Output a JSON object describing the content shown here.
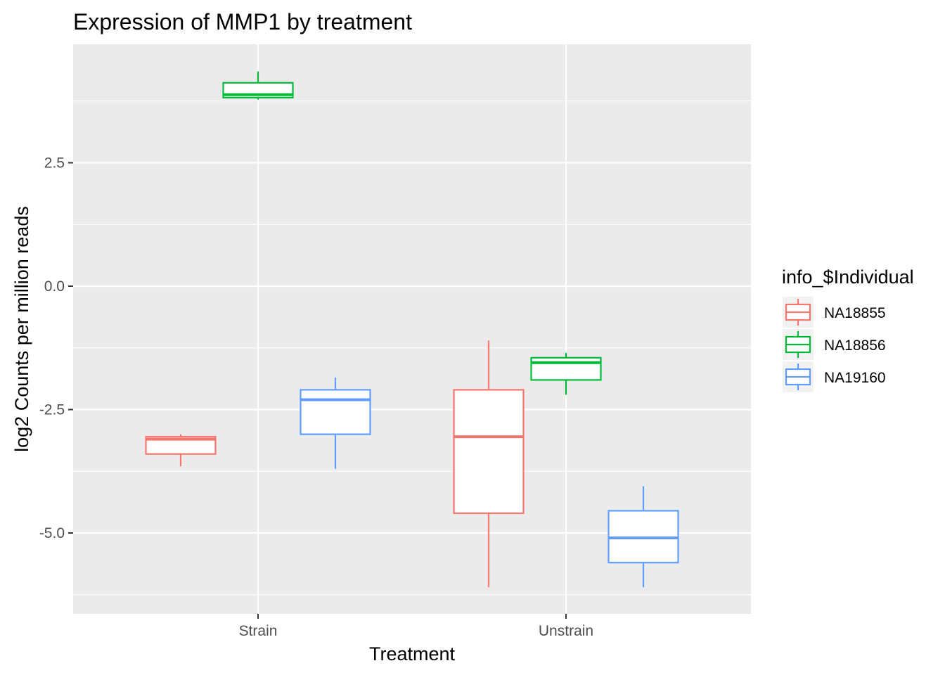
{
  "chart_data": {
    "type": "boxplot",
    "title": "Expression of MMP1 by treatment",
    "xlabel": "Treatment",
    "ylabel": "log2 Counts per million reads",
    "categories": [
      "Strain",
      "Unstrain"
    ],
    "y_ticks": [
      2.5,
      0.0,
      -2.5,
      -5.0
    ],
    "y_tick_labels": [
      "2.5",
      "0.0",
      "-2.5",
      "-5.0"
    ],
    "ylim": [
      -6.6,
      4.9
    ],
    "grid": true,
    "legend": {
      "title": "info_$Individual",
      "position": "right"
    },
    "series": [
      {
        "name": "NA18855",
        "color": "#F8766D",
        "boxes": [
          {
            "category": "Strain",
            "min": -3.65,
            "q1": -3.4,
            "median": -3.1,
            "q3": -3.05,
            "max": -3.0
          },
          {
            "category": "Unstrain",
            "min": -6.1,
            "q1": -4.6,
            "median": -3.05,
            "q3": -2.1,
            "max": -1.1
          }
        ]
      },
      {
        "name": "NA18856",
        "color": "#00BA38",
        "boxes": [
          {
            "category": "Strain",
            "min": 3.78,
            "q1": 3.82,
            "median": 3.88,
            "q3": 4.12,
            "max": 4.35
          },
          {
            "category": "Unstrain",
            "min": -2.2,
            "q1": -1.9,
            "median": -1.55,
            "q3": -1.45,
            "max": -1.35
          }
        ]
      },
      {
        "name": "NA19160",
        "color": "#619CFF",
        "boxes": [
          {
            "category": "Strain",
            "min": -3.7,
            "q1": -3.0,
            "median": -2.3,
            "q3": -2.1,
            "max": -1.85
          },
          {
            "category": "Unstrain",
            "min": -6.1,
            "q1": -5.6,
            "median": -5.1,
            "q3": -4.55,
            "max": -4.05
          }
        ]
      }
    ]
  }
}
